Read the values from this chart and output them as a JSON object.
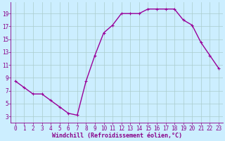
{
  "x": [
    0,
    1,
    2,
    3,
    4,
    5,
    6,
    7,
    8,
    9,
    10,
    11,
    12,
    13,
    14,
    15,
    16,
    17,
    18,
    19,
    20,
    21,
    22,
    23
  ],
  "y": [
    8.5,
    7.5,
    6.5,
    6.5,
    5.5,
    4.5,
    3.5,
    3.2,
    8.5,
    12.5,
    16.0,
    17.2,
    19.0,
    19.0,
    19.0,
    19.7,
    19.7,
    19.7,
    19.7,
    18.0,
    17.2,
    14.5,
    12.5,
    10.5
  ],
  "line_color": "#990099",
  "marker": "+",
  "bg_color": "#cceeff",
  "grid_color": "#aacccc",
  "xlabel": "Windchill (Refroidissement éolien,°C)",
  "yticks": [
    3,
    5,
    7,
    9,
    11,
    13,
    15,
    17,
    19
  ],
  "xticks": [
    0,
    1,
    2,
    3,
    4,
    5,
    6,
    7,
    8,
    9,
    10,
    11,
    12,
    13,
    14,
    15,
    16,
    17,
    18,
    19,
    20,
    21,
    22,
    23
  ],
  "xlim": [
    -0.5,
    23.5
  ],
  "ylim": [
    2.0,
    20.8
  ],
  "tick_color": "#880088",
  "label_color": "#880088",
  "line_width": 1.0,
  "marker_size": 3,
  "tick_fontsize": 5.5,
  "xlabel_fontsize": 6.0
}
